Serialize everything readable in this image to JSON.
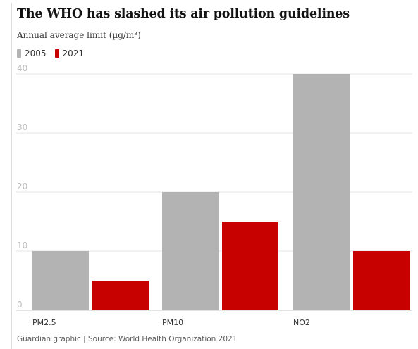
{
  "title": "The WHO has slashed its air pollution guidelines",
  "subtitle": "Annual average limit (µg/m³)",
  "source": "Guardian graphic | Source: World Health Organization 2021",
  "chart_data": {
    "type": "bar",
    "title": "The WHO has slashed its air pollution guidelines",
    "ylabel": "Annual average limit (µg/m³)",
    "xlabel": "",
    "categories": [
      "PM2.5",
      "PM10",
      "NO2"
    ],
    "series": [
      {
        "name": "2005",
        "color": "#b3b3b3",
        "values": [
          10,
          20,
          40
        ]
      },
      {
        "name": "2021",
        "color": "#c70000",
        "values": [
          5,
          15,
          10
        ]
      }
    ],
    "ylim": [
      0,
      40
    ],
    "yticks": [
      0,
      10,
      20,
      30,
      40
    ],
    "grid": true,
    "legend": "top-left"
  }
}
